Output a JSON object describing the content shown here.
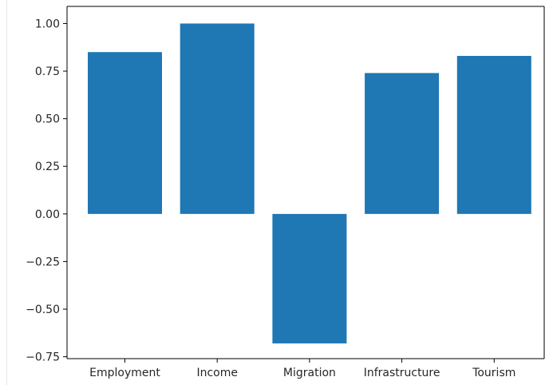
{
  "chart_data": {
    "type": "bar",
    "title": "",
    "xlabel": "",
    "ylabel": "",
    "categories": [
      "Employment",
      "Income",
      "Migration",
      "Infrastructure",
      "Tourism"
    ],
    "values": [
      0.85,
      1.0,
      -0.68,
      0.74,
      0.83
    ],
    "ylim": [
      -0.76,
      1.09
    ],
    "yticks": [
      -0.75,
      -0.5,
      -0.25,
      0.0,
      0.25,
      0.5,
      0.75,
      1.0
    ],
    "ytick_labels": [
      "−0.75",
      "−0.50",
      "−0.25",
      "0.00",
      "0.25",
      "0.50",
      "0.75",
      "1.00"
    ],
    "bar_color": "#1f77b4",
    "grid": false,
    "legend": "none"
  }
}
